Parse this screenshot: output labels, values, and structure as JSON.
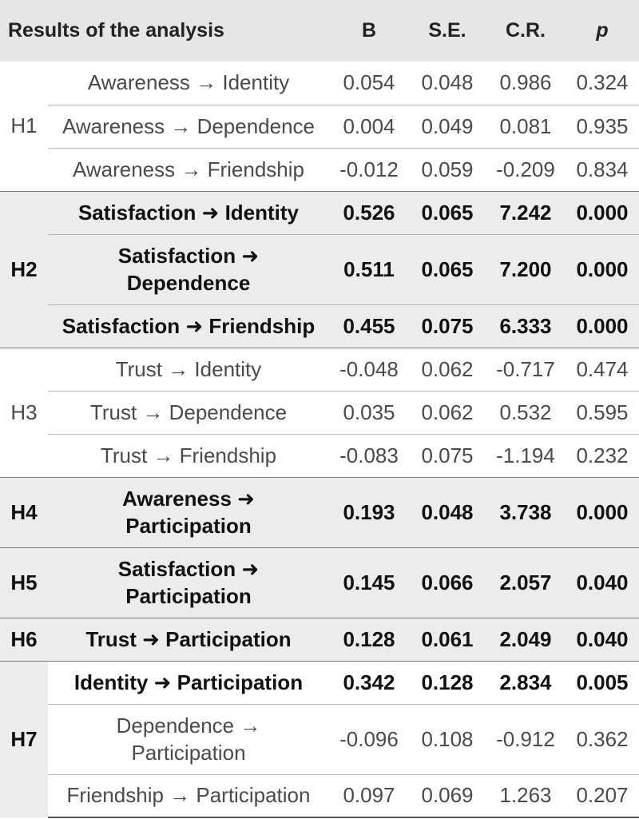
{
  "headers": {
    "title": "Results of the analysis",
    "b": "B",
    "se": "S.E.",
    "cr": "C.R.",
    "p": "p"
  },
  "groups": [
    {
      "hypothesis": "H1",
      "rows": [
        {
          "path": "Awareness → Identity",
          "b": "0.054",
          "se": "0.048",
          "cr": "0.986",
          "p": "0.324"
        },
        {
          "path": "Awareness → Dependence",
          "b": "0.004",
          "se": "0.049",
          "cr": "0.081",
          "p": "0.935"
        },
        {
          "path": "Awareness → Friendship",
          "b": "-0.012",
          "se": "0.059",
          "cr": "-0.209",
          "p": "0.834"
        }
      ]
    },
    {
      "hypothesis": "H2",
      "rows": [
        {
          "path": "Satisfaction ➜ Identity",
          "b": "0.526",
          "se": "0.065",
          "cr": "7.242",
          "p": "0.000"
        },
        {
          "path": "Satisfaction ➜ Dependence",
          "b": "0.511",
          "se": "0.065",
          "cr": "7.200",
          "p": "0.000"
        },
        {
          "path": "Satisfaction ➜ Friendship",
          "b": "0.455",
          "se": "0.075",
          "cr": "6.333",
          "p": "0.000"
        }
      ]
    },
    {
      "hypothesis": "H3",
      "rows": [
        {
          "path": "Trust → Identity",
          "b": "-0.048",
          "se": "0.062",
          "cr": "-0.717",
          "p": "0.474"
        },
        {
          "path": "Trust → Dependence",
          "b": "0.035",
          "se": "0.062",
          "cr": "0.532",
          "p": "0.595"
        },
        {
          "path": "Trust → Friendship",
          "b": "-0.083",
          "se": "0.075",
          "cr": "-1.194",
          "p": "0.232"
        }
      ]
    },
    {
      "hypothesis": "H4",
      "rows": [
        {
          "path": "Awareness ➜ Participation",
          "b": "0.193",
          "se": "0.048",
          "cr": "3.738",
          "p": "0.000"
        }
      ]
    },
    {
      "hypothesis": "H5",
      "rows": [
        {
          "path": "Satisfaction ➜ Participation",
          "b": "0.145",
          "se": "0.066",
          "cr": "2.057",
          "p": "0.040"
        }
      ]
    },
    {
      "hypothesis": "H6",
      "rows": [
        {
          "path": "Trust ➜ Participation",
          "b": "0.128",
          "se": "0.061",
          "cr": "2.049",
          "p": "0.040"
        }
      ]
    },
    {
      "hypothesis": "H7",
      "rows": [
        {
          "path": "Identity ➜ Participation",
          "b": "0.342",
          "se": "0.128",
          "cr": "2.834",
          "p": "0.005"
        },
        {
          "path": "Dependence → Participation",
          "b": "-0.096",
          "se": "0.108",
          "cr": "-0.912",
          "p": "0.362"
        },
        {
          "path": "Friendship → Participation",
          "b": "0.097",
          "se": "0.069",
          "cr": "1.263",
          "p": "0.207"
        }
      ]
    }
  ]
}
